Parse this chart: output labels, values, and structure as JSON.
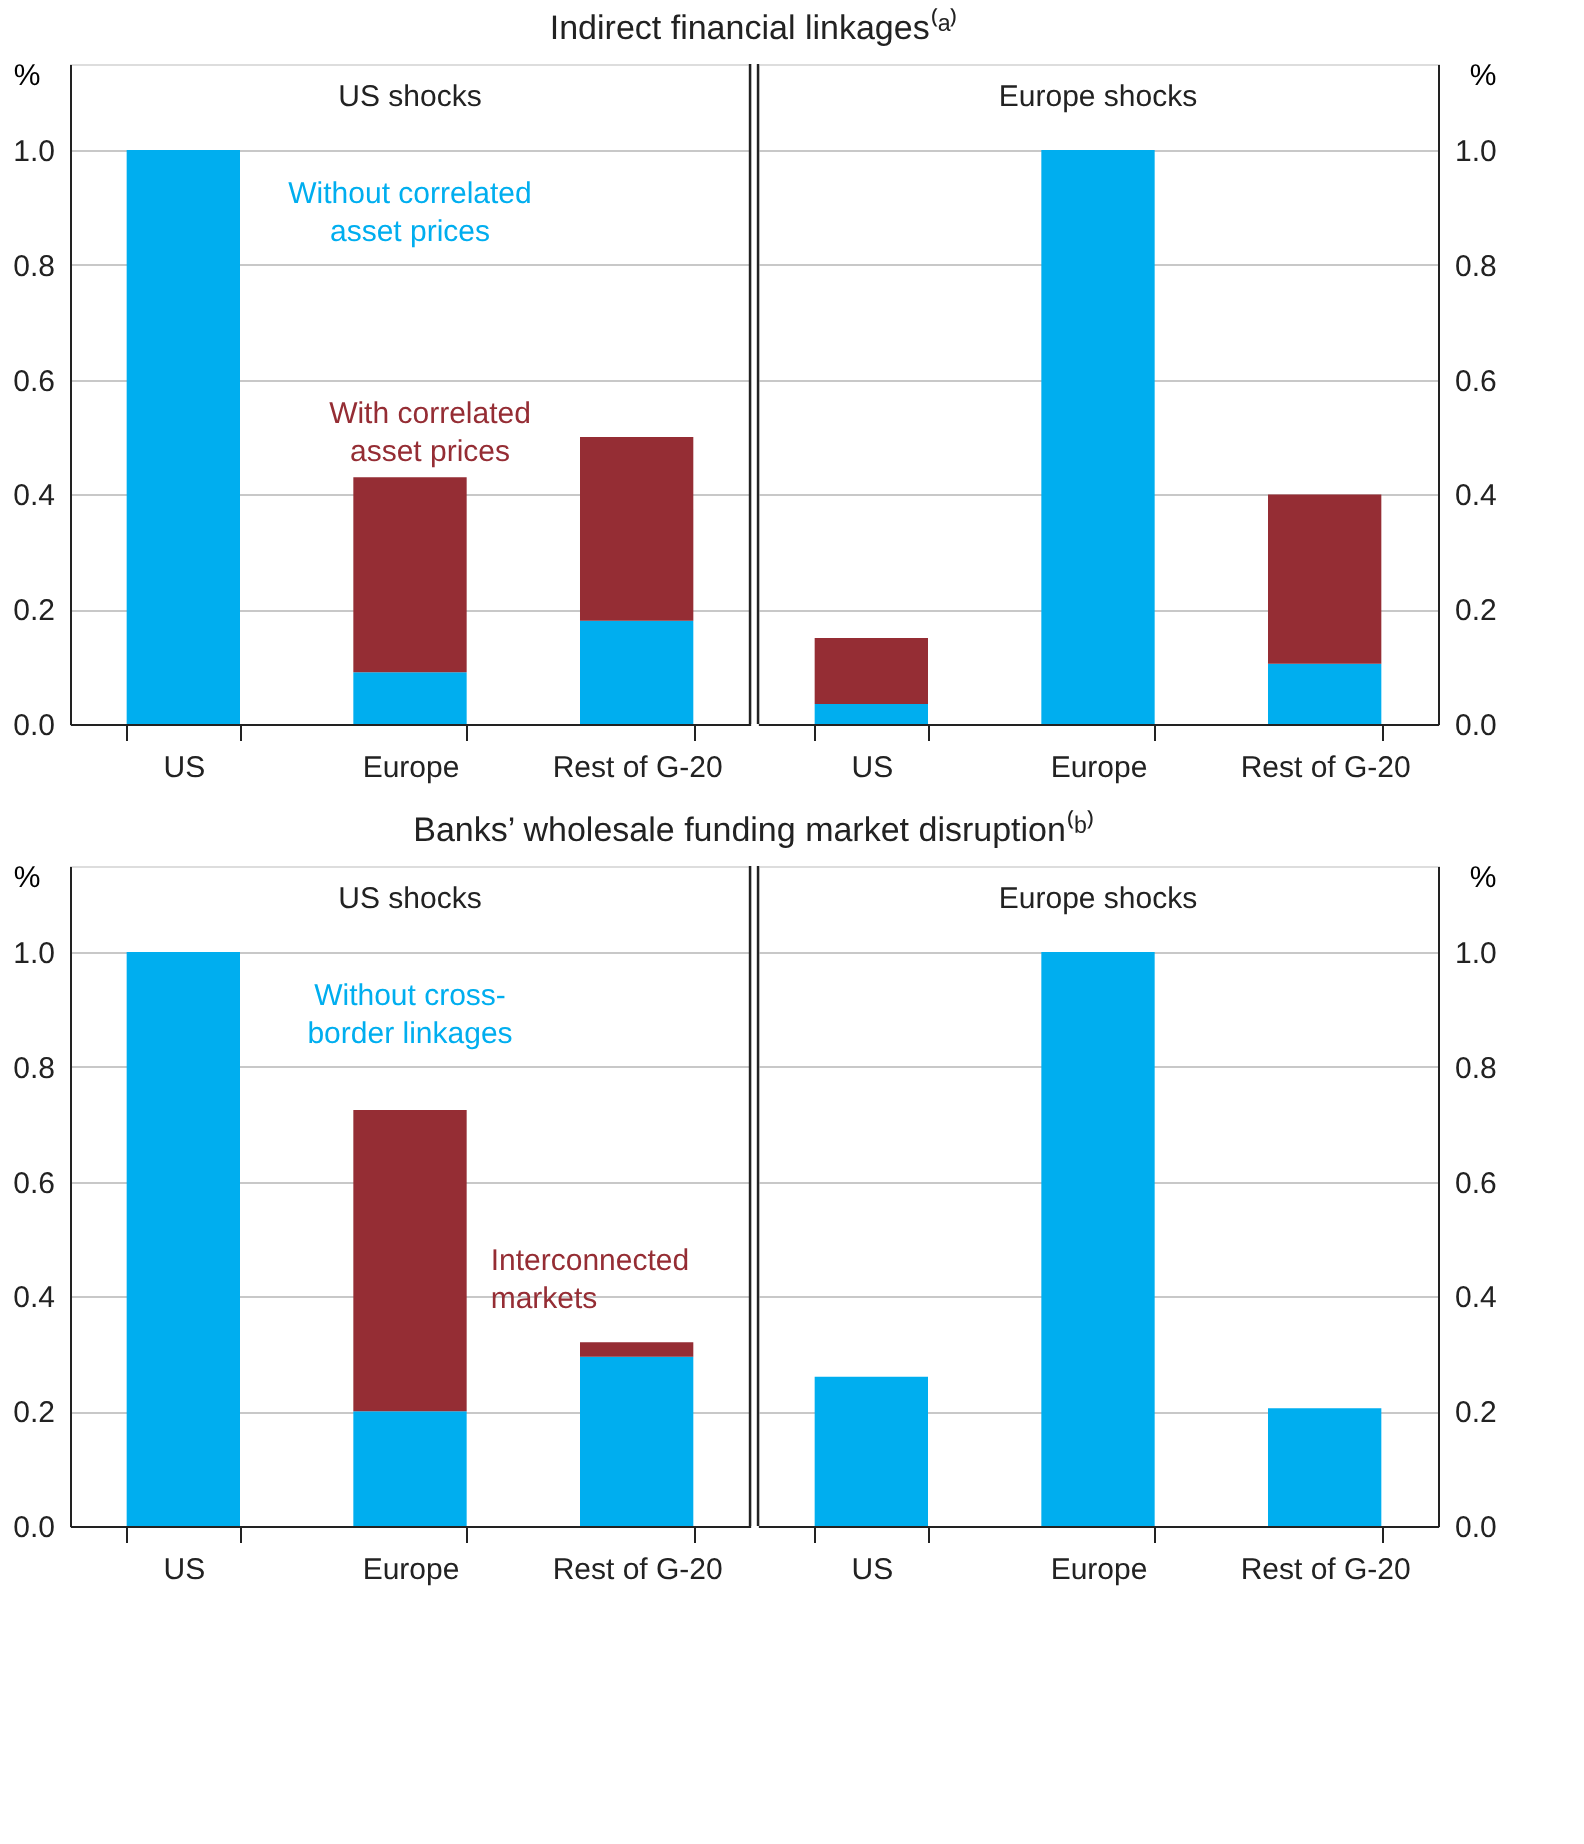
{
  "chart_data": [
    {
      "type": "bar",
      "title": "Indirect financial linkages⁽ᵃ⁾",
      "subtitle": "US shocks",
      "ylabel": "%",
      "categories": [
        "US",
        "Europe",
        "Rest of G-20"
      ],
      "stacked": true,
      "ylim": [
        0,
        1.15
      ],
      "yticks": [
        {
          "value": 0,
          "label": "0.0"
        },
        0.2,
        0.4,
        0.6,
        0.8,
        {
          "value": 1,
          "label": "1.0"
        }
      ],
      "grid": "y",
      "series": [
        {
          "name": "Without correlated asset prices",
          "color": "#00aeef",
          "values": [
            1.0,
            0.09,
            0.18
          ]
        },
        {
          "name": "With correlated asset prices",
          "color": "#952d34",
          "values": [
            0,
            0.34,
            0.32
          ]
        }
      ]
    },
    {
      "type": "bar",
      "subtitle": "Europe shocks",
      "ylabel": "%",
      "categories": [
        "US",
        "Europe",
        "Rest of G-20"
      ],
      "stacked": true,
      "ylim": [
        0,
        1.15
      ],
      "yticks": [
        {
          "value": 0,
          "label": "0.0"
        },
        0.2,
        0.4,
        0.6,
        0.8,
        {
          "value": 1,
          "label": "1.0"
        }
      ],
      "grid": "y",
      "series": [
        {
          "color": "#00aeef",
          "values": [
            0.035,
            1.0,
            0.105
          ]
        },
        {
          "color": "#952d34",
          "values": [
            0.115,
            0,
            0.295
          ]
        }
      ]
    },
    {
      "type": "bar",
      "title": "Banks’ wholesale funding market disruption⁽ᵇ⁾",
      "subtitle": "US shocks",
      "ylabel": "%",
      "categories": [
        "US",
        "Europe",
        "Rest of G-20"
      ],
      "stacked": true,
      "ylim": [
        0,
        1.15
      ],
      "yticks": [
        {
          "value": 0,
          "label": "0.0"
        },
        0.2,
        0.4,
        0.6,
        0.8,
        {
          "value": 1,
          "label": "1.0"
        }
      ],
      "grid": "y",
      "series": [
        {
          "name": "Without cross-border linkages",
          "color": "#00aeef",
          "values": [
            1.0,
            0.2,
            0.295
          ]
        },
        {
          "name": "Interconnected markets",
          "color": "#952d34",
          "values": [
            0,
            0.525,
            0.025
          ]
        }
      ]
    },
    {
      "type": "bar",
      "subtitle": "Europe shocks",
      "ylabel": "%",
      "categories": [
        "US",
        "Europe",
        "Rest of G-20"
      ],
      "stacked": true,
      "ylim": [
        0,
        1.15
      ],
      "yticks": [
        {
          "value": 0,
          "label": "0.0"
        },
        0.2,
        0.4,
        0.6,
        0.8,
        {
          "value": 1,
          "label": "1.0"
        }
      ],
      "grid": "y",
      "series": [
        {
          "color": "#00aeef",
          "values": [
            0.26,
            1.0,
            0.205
          ]
        }
      ]
    }
  ]
}
